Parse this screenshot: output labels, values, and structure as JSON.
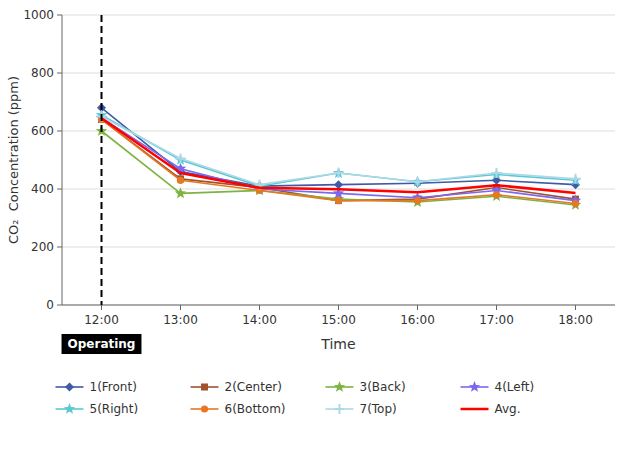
{
  "chart_data": {
    "type": "line",
    "categories": [
      "12:00",
      "13:00",
      "14:00",
      "15:00",
      "16:00",
      "17:00",
      "18:00"
    ],
    "series": [
      {
        "name": "1(Front)",
        "color": "#3F5AA6",
        "marker": "diamond",
        "values": [
          680,
          460,
          410,
          415,
          420,
          430,
          415
        ]
      },
      {
        "name": "2(Center)",
        "color": "#A0522D",
        "marker": "square",
        "values": [
          640,
          435,
          405,
          360,
          365,
          405,
          365
        ]
      },
      {
        "name": "3(Back)",
        "color": "#7CB342",
        "marker": "star",
        "values": [
          600,
          385,
          395,
          365,
          355,
          375,
          345
        ]
      },
      {
        "name": "4(Left)",
        "color": "#7B68EE",
        "marker": "star",
        "values": [
          645,
          470,
          400,
          385,
          370,
          395,
          360
        ]
      },
      {
        "name": "5(Right)",
        "color": "#5BC8D4",
        "marker": "star",
        "values": [
          655,
          500,
          410,
          455,
          425,
          450,
          430
        ]
      },
      {
        "name": "6(Bottom)",
        "color": "#E87722",
        "marker": "circle",
        "values": [
          640,
          430,
          395,
          360,
          360,
          380,
          350
        ]
      },
      {
        "name": "7(Top)",
        "color": "#ADD8E6",
        "marker": "plus",
        "values": [
          650,
          505,
          415,
          455,
          425,
          455,
          435
        ]
      },
      {
        "name": "Avg.",
        "color": "#FF0000",
        "marker": "none",
        "values": [
          644,
          455,
          404,
          399,
          389,
          413,
          386
        ]
      }
    ],
    "xlabel": "Time",
    "ylabel": "CO₂  Concentration (ppm)",
    "ylim": [
      0,
      1000
    ],
    "yticks": [
      0,
      200,
      400,
      600,
      800,
      1000
    ],
    "grid": true,
    "legend": "bottom",
    "annotations": [
      {
        "text": "Operating",
        "x": "12:00",
        "line_style": "dashed",
        "color": "#000000"
      }
    ]
  }
}
